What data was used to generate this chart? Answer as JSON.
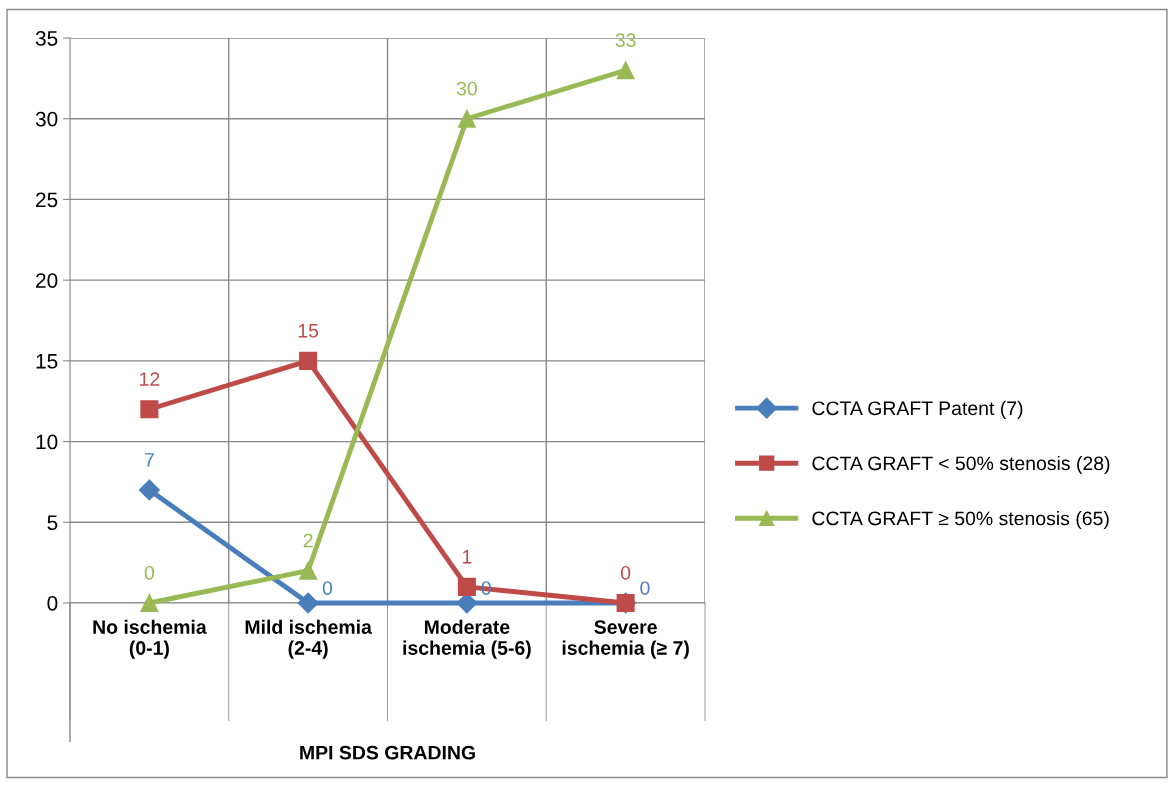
{
  "chart_data": {
    "type": "line",
    "xlabel": "MPI SDS GRADING",
    "categories": [
      "No ischemia\n(0-1)",
      "Mild ischemia\n(2-4)",
      "Moderate\nischemia (5-6)",
      "Severe\nischemia (≥ 7)"
    ],
    "series": [
      {
        "name": "CCTA GRAFT Patent (7)",
        "color": "#4a7ebb",
        "marker": "diamond",
        "values": [
          7,
          0,
          0,
          0
        ]
      },
      {
        "name": "CCTA GRAFT < 50% stenosis (28)",
        "color": "#be4b48",
        "marker": "square",
        "values": [
          12,
          15,
          1,
          0
        ]
      },
      {
        "name": "CCTA GRAFT ≥ 50% stenosis (65)",
        "color": "#98b954",
        "marker": "triangle",
        "values": [
          0,
          2,
          30,
          33
        ]
      }
    ],
    "ylim": [
      0,
      35
    ],
    "yticks": [
      0,
      5,
      10,
      15,
      20,
      25,
      30,
      35
    ],
    "grid": true,
    "legend": "right",
    "data_labels": true,
    "line_style": "solid"
  }
}
